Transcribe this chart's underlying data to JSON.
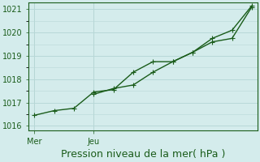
{
  "title": "",
  "xlabel": "Pression niveau de la mer( hPa )",
  "ylabel": "",
  "bg_color": "#d4ecec",
  "grid_color": "#b8d8d8",
  "line_color": "#1a5c1a",
  "ylim": [
    1015.8,
    1021.3
  ],
  "yticks": [
    1016,
    1017,
    1018,
    1019,
    1020,
    1021
  ],
  "line1_x": [
    0,
    1,
    2,
    3,
    4,
    5,
    6,
    7,
    8,
    9,
    10,
    11
  ],
  "line1_y": [
    1016.45,
    1016.65,
    1016.75,
    1017.45,
    1017.55,
    1018.3,
    1018.75,
    1018.75,
    1019.15,
    1019.75,
    1020.1,
    1021.15
  ],
  "line2_x": [
    3,
    4,
    5,
    6,
    7,
    8,
    9,
    10,
    11
  ],
  "line2_y": [
    1017.35,
    1017.6,
    1017.75,
    1018.3,
    1018.75,
    1019.15,
    1019.6,
    1019.75,
    1021.1
  ],
  "xtick_positions": [
    0,
    3
  ],
  "xtick_labels": [
    "Mer",
    "Jeu"
  ],
  "vline_x": [
    0,
    3
  ],
  "marker_size": 2.5,
  "line_width": 1.0,
  "figsize": [
    3.2,
    2.0
  ],
  "dpi": 100,
  "xlabel_fontsize": 9,
  "ytick_fontsize": 7,
  "xtick_fontsize": 7
}
